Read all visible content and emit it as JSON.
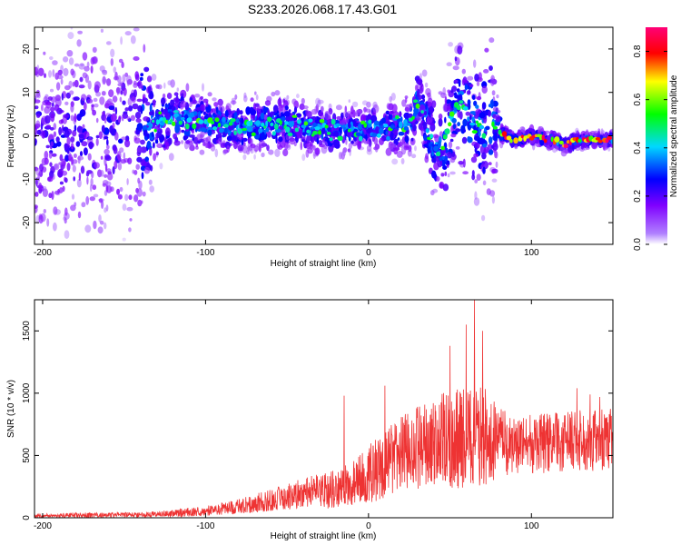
{
  "title": "S233.2026.068.17.43.G01",
  "chart_data": [
    {
      "type": "heatmap",
      "name": "spectrogram",
      "xlabel": "Height of straight line (km)",
      "ylabel": "Frequency (Hz)",
      "xlim": [
        -205,
        150
      ],
      "ylim": [
        -25,
        25
      ],
      "xticks": [
        -200,
        -100,
        0,
        100
      ],
      "yticks": [
        -20,
        -10,
        0,
        10,
        20
      ],
      "colorbar": {
        "label": "Normalized spectral amplitude",
        "range": [
          0.0,
          0.9
        ],
        "ticks": [
          "0.0",
          "0.2",
          "0.4",
          "0.6",
          "0.8"
        ],
        "colors": [
          "#ffffff",
          "#7f00ff",
          "#0000ff",
          "#00ffff",
          "#00ff00",
          "#ffff00",
          "#ff0000",
          "#ff0066"
        ]
      },
      "ridge": {
        "x": [
          -200,
          -140,
          -120,
          -100,
          -80,
          -60,
          -40,
          -20,
          0,
          20,
          28,
          30,
          35,
          40,
          45,
          50,
          55,
          60,
          65,
          70,
          75,
          80,
          85,
          90,
          100,
          110,
          115,
          120,
          130,
          140,
          150
        ],
        "y": [
          0,
          2,
          4,
          3,
          2,
          3,
          2,
          1,
          2,
          2,
          4,
          8,
          3,
          -2,
          -5,
          3,
          8,
          5,
          3,
          2,
          4,
          1,
          0,
          -1,
          0,
          -1,
          -1,
          -2,
          -1,
          -1,
          -1
        ]
      },
      "scatter_width_hz": {
        "x": [
          -200,
          -140,
          -130,
          -100,
          -50,
          0,
          30,
          45,
          50,
          75,
          82,
          150
        ],
        "half_width": [
          25,
          25,
          9,
          7,
          7,
          5,
          8,
          15,
          15,
          20,
          2,
          2
        ]
      }
    },
    {
      "type": "line",
      "name": "snr",
      "xlabel": "Height of straight line (km)",
      "ylabel": "SNR (10 * v/v)",
      "xlim": [
        -205,
        150
      ],
      "ylim": [
        0,
        1750
      ],
      "xticks": [
        -200,
        -100,
        0,
        100
      ],
      "yticks": [
        0,
        500,
        1000,
        1500
      ],
      "color": "#ee3333",
      "envelope": {
        "x": [
          -205,
          -180,
          -140,
          -120,
          -100,
          -80,
          -60,
          -40,
          -20,
          -10,
          0,
          10,
          20,
          30,
          40,
          50,
          60,
          70,
          80,
          90,
          100,
          110,
          120,
          130,
          140,
          150
        ],
        "mean": [
          15,
          20,
          25,
          35,
          55,
          90,
          140,
          200,
          230,
          270,
          350,
          420,
          520,
          560,
          590,
          620,
          640,
          650,
          600,
          570,
          590,
          600,
          610,
          620,
          620,
          630
        ],
        "amp": [
          15,
          20,
          20,
          30,
          40,
          60,
          90,
          120,
          160,
          180,
          230,
          280,
          300,
          330,
          360,
          420,
          450,
          440,
          300,
          220,
          240,
          240,
          240,
          250,
          250,
          250
        ]
      },
      "peaks": {
        "x": [
          -15,
          10,
          50,
          60,
          65,
          70,
          128,
          136,
          142
        ],
        "y": [
          980,
          1060,
          1380,
          1550,
          1750,
          1500,
          1040,
          990,
          970
        ]
      }
    }
  ]
}
